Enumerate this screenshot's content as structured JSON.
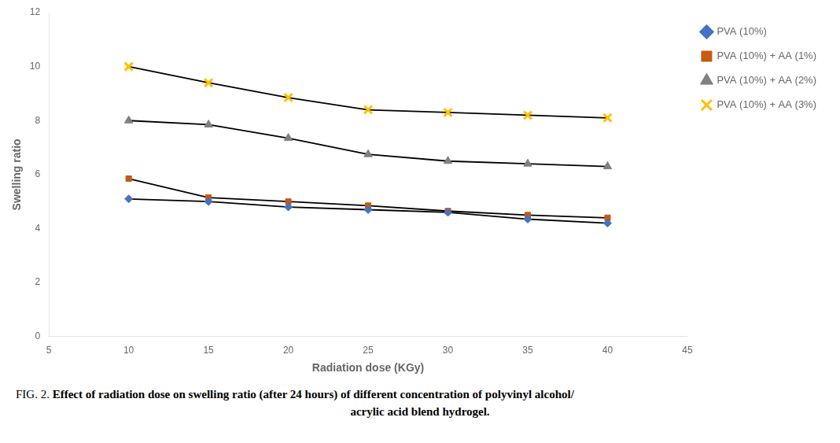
{
  "chart_data": {
    "type": "line",
    "x": [
      10,
      15,
      20,
      25,
      30,
      35,
      40
    ],
    "series": [
      {
        "name": "PVA (10%)",
        "values": [
          5.1,
          5.0,
          4.8,
          4.7,
          4.6,
          4.35,
          4.2
        ],
        "color": "#4472C4",
        "marker": "diamond"
      },
      {
        "name": "PVA (10%) + AA (1%)",
        "values": [
          5.85,
          5.15,
          5.0,
          4.85,
          4.65,
          4.5,
          4.4
        ],
        "color": "#C55A11",
        "marker": "square"
      },
      {
        "name": "PVA (10%) + AA (2%)",
        "values": [
          8.0,
          7.85,
          7.35,
          6.75,
          6.5,
          6.4,
          6.3
        ],
        "color": "#808080",
        "marker": "triangle"
      },
      {
        "name": "PVA (10%) + AA (3%)",
        "values": [
          10.0,
          9.4,
          8.85,
          8.4,
          8.3,
          8.2,
          8.1
        ],
        "color": "#FFC000",
        "marker": "x"
      }
    ],
    "x_label": "Radiation dose (KGy)",
    "y_label": "Swelling ratio",
    "xlim": [
      5,
      45
    ],
    "ylim": [
      0,
      12
    ],
    "xticks": [
      5,
      10,
      15,
      20,
      25,
      30,
      35,
      40,
      45
    ],
    "yticks": [
      0,
      2,
      4,
      6,
      8,
      10,
      12
    ],
    "grid": false,
    "legend": "upper right",
    "annotations": [
      "FIG. 2. ",
      "Effect of radiation dose on swelling ratio (after 24 hours) of different concentration of polyvinyl alcohol/",
      "acrylic acid blend hydrogel."
    ]
  }
}
